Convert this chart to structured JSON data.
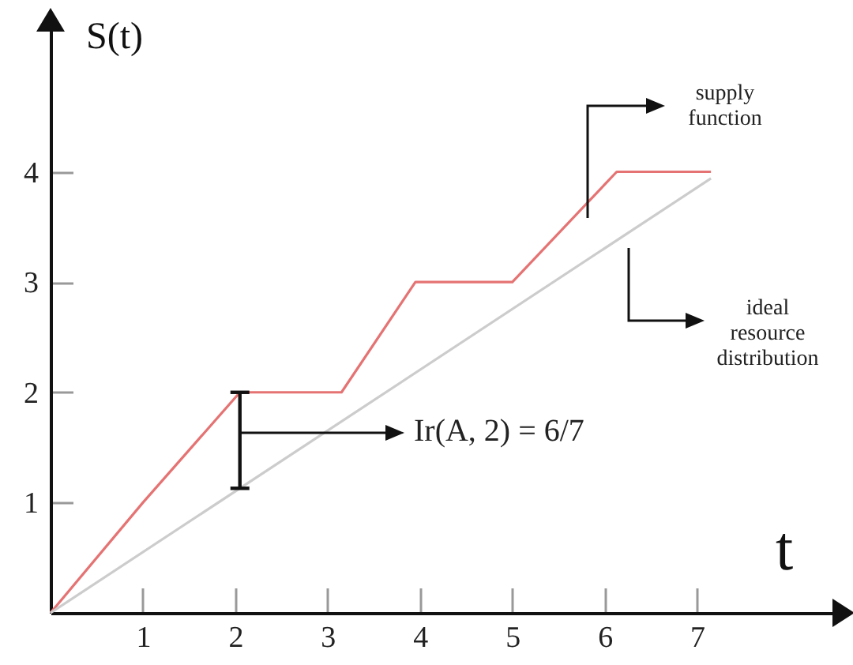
{
  "chart_data": {
    "type": "line",
    "xlabel": "t",
    "ylabel": "S(t)",
    "x": [
      0,
      1,
      2.05,
      3.15,
      3.95,
      5,
      6.13,
      7.15
    ],
    "series": [
      {
        "color": "#e57373",
        "values": [
          0,
          1,
          2,
          2,
          3,
          3,
          4,
          4
        ]
      },
      {
        "color": "#cccccc",
        "x": [
          0,
          7.15
        ],
        "values": [
          0,
          3.94
        ]
      }
    ],
    "xlim": [
      0,
      8.5
    ],
    "ylim": [
      0,
      5.3
    ],
    "xticks": [
      1,
      2,
      3,
      4,
      5,
      6,
      7
    ],
    "yticks": [
      1,
      2,
      3,
      4
    ],
    "grid": false,
    "marker": "none",
    "line_style": "solid",
    "annotations": [
      "supply function",
      "ideal resource distribution",
      "Ir(A, 2) = 6/7"
    ]
  }
}
